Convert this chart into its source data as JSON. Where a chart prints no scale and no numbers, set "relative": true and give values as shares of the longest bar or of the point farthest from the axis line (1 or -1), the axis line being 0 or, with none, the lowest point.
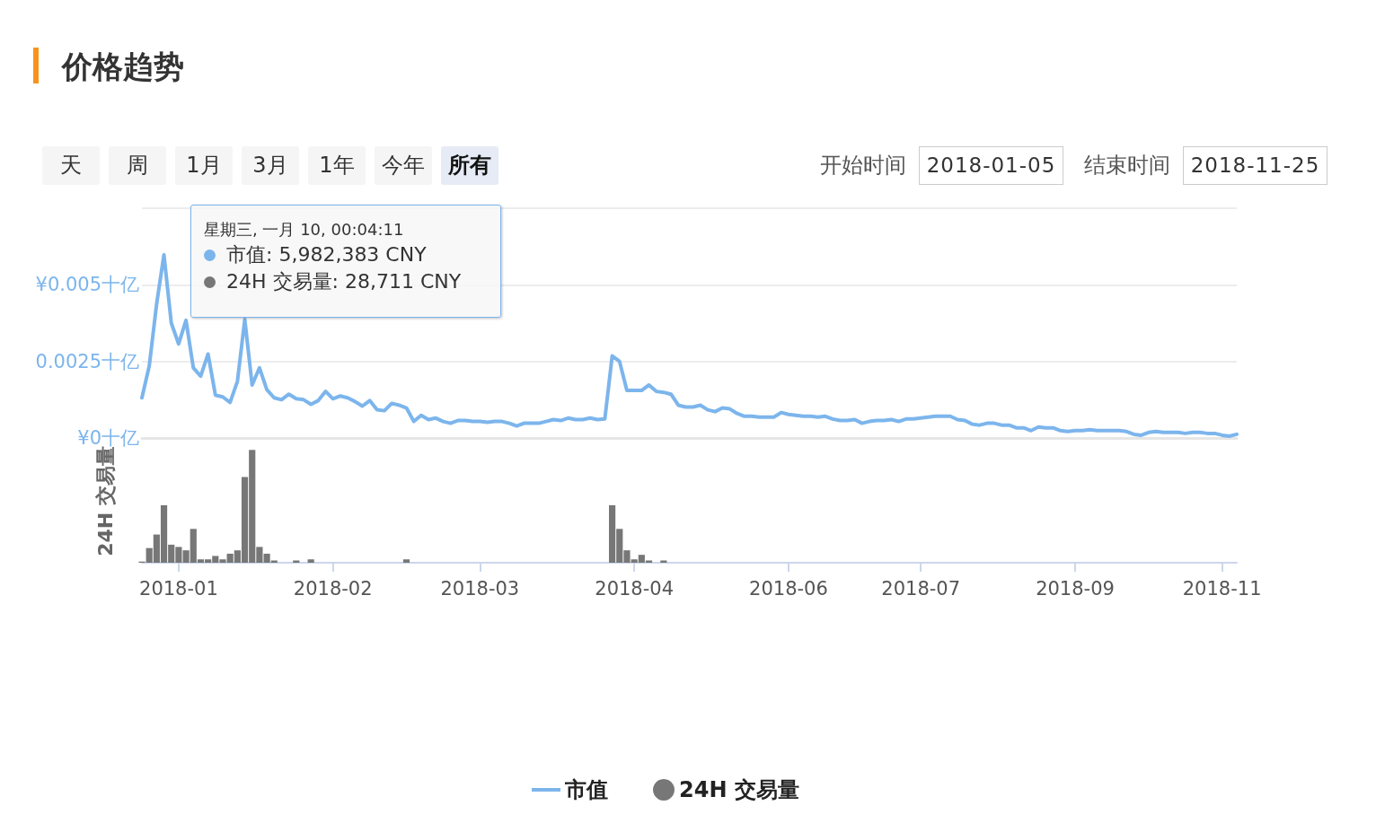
{
  "chart_data": [
    {
      "type": "line",
      "title": "价格趋势",
      "categories": [
        null,
        null,
        null,
        null,
        null,
        "2018-01",
        null,
        null,
        null,
        null,
        null,
        null,
        null,
        null,
        null,
        null,
        null,
        null,
        null,
        null,
        null,
        null,
        null,
        null,
        null,
        null,
        "2018-02",
        null,
        null,
        null,
        null,
        null,
        null,
        null,
        null,
        null,
        null,
        null,
        null,
        null,
        null,
        null,
        null,
        null,
        null,
        null,
        "2018-03",
        null,
        null,
        null,
        null,
        null,
        null,
        null,
        null,
        null,
        null,
        null,
        null,
        null,
        null,
        null,
        null,
        null,
        null,
        null,
        null,
        "2018-04",
        null,
        null,
        null,
        null,
        null,
        null,
        null,
        null,
        null,
        null,
        null,
        null,
        null,
        null,
        null,
        null,
        null,
        null,
        null,
        null,
        "2018-06",
        null,
        null,
        null,
        null,
        null,
        null,
        null,
        null,
        null,
        null,
        null,
        null,
        null,
        null,
        null,
        null,
        null,
        "2018-07",
        null,
        null,
        null,
        null,
        null,
        null,
        null,
        null,
        null,
        null,
        null,
        null,
        null,
        null,
        null,
        null,
        null,
        null,
        null,
        null,
        "2018-09",
        null,
        null,
        null,
        null,
        null,
        null,
        null,
        null,
        null,
        null,
        null,
        null,
        null,
        null,
        null,
        null,
        null,
        null,
        null,
        "2018-11",
        null,
        null
      ],
      "series": [
        {
          "name": "市值",
          "color": "#7cb5ec",
          "values": [
            0.00131,
            0.00235,
            0.00437,
            0.00598,
            0.00375,
            0.00307,
            0.00384,
            0.00229,
            0.00202,
            0.00274,
            0.0014,
            0.00134,
            0.00116,
            0.00185,
            0.00387,
            0.00173,
            0.00229,
            0.00158,
            0.00131,
            0.00125,
            0.00143,
            0.00128,
            0.00125,
            0.0011,
            0.00122,
            0.00152,
            0.00128,
            0.00137,
            0.00131,
            0.00119,
            0.00104,
            0.00122,
            0.00092,
            0.00089,
            0.00113,
            0.00107,
            0.00098,
            0.00054,
            0.00074,
            0.0006,
            0.00065,
            0.00054,
            0.00048,
            0.00057,
            0.00057,
            0.00054,
            0.00054,
            0.00051,
            0.00054,
            0.00054,
            0.00048,
            0.00039,
            0.00048,
            0.00048,
            0.00048,
            0.00054,
            0.0006,
            0.00057,
            0.00065,
            0.0006,
            0.0006,
            0.00065,
            0.0006,
            0.00062,
            0.00268,
            0.0025,
            0.00155,
            0.00155,
            0.00155,
            0.00173,
            0.00152,
            0.00149,
            0.00143,
            0.00107,
            0.00101,
            0.00101,
            0.00107,
            0.00092,
            0.00086,
            0.00098,
            0.00095,
            0.0008,
            0.00071,
            0.00071,
            0.00068,
            0.00068,
            0.00068,
            0.00083,
            0.00077,
            0.00074,
            0.00071,
            0.00071,
            0.00068,
            0.00071,
            0.00062,
            0.00057,
            0.00057,
            0.0006,
            0.00048,
            0.00054,
            0.00057,
            0.00057,
            0.0006,
            0.00054,
            0.00062,
            0.00062,
            0.00065,
            0.00068,
            0.00071,
            0.00071,
            0.00071,
            0.0006,
            0.00057,
            0.00045,
            0.00042,
            0.00048,
            0.00048,
            0.00042,
            0.00042,
            0.00033,
            0.00033,
            0.00024,
            0.00036,
            0.00033,
            0.00033,
            0.00024,
            0.00021,
            0.00024,
            0.00024,
            0.00027,
            0.00024,
            0.00024,
            0.00024,
            0.00024,
            0.00021,
            0.00012,
            9e-05,
            0.00018,
            0.00021,
            0.00018,
            0.00018,
            0.00018,
            0.00015,
            0.00018,
            0.00018,
            0.00015,
            0.00015,
            9e-05,
            6e-05,
            0.00012
          ]
        }
      ],
      "ylim": [
        0,
        0.0075
      ],
      "yticks": [
        {
          "value": 0,
          "label": "¥0十亿"
        },
        {
          "value": 0.0025,
          "label": "0.0025十亿"
        },
        {
          "value": 0.005,
          "label": "¥0.005十亿"
        },
        {
          "value": 0.0075,
          "label": null
        }
      ],
      "grid": "y",
      "legend": "bottom",
      "marker": "none",
      "tick_labels": "y",
      "annotations": [
        "天",
        "周",
        "1月",
        "3月",
        "1年",
        "今年",
        "所有",
        "开始时间",
        "2018-01-05",
        "结束时间",
        "2018-11-25",
        "星期三, 一月 10, 00:04:11",
        "市值: 5,982,383 CNY",
        "24H 交易量: 28,711 CNY"
      ]
    },
    {
      "type": "bar",
      "ylabel": "24H 交易量",
      "categories": [
        null,
        null,
        null,
        null,
        null,
        "2018-01",
        null,
        null,
        null,
        null,
        null,
        null,
        null,
        null,
        null,
        null,
        null,
        null,
        null,
        null,
        null,
        null,
        null,
        null,
        null,
        null,
        "2018-02",
        null,
        null,
        null,
        null,
        null,
        null,
        null,
        null,
        null,
        null,
        null,
        null,
        null,
        null,
        null,
        null,
        null,
        null,
        null,
        "2018-03",
        null,
        null,
        null,
        null,
        null,
        null,
        null,
        null,
        null,
        null,
        null,
        null,
        null,
        null,
        null,
        null,
        null,
        null,
        null,
        null,
        "2018-04",
        null,
        null,
        null,
        null,
        null,
        null,
        null,
        null,
        null,
        null,
        null,
        null,
        null,
        null,
        null,
        null,
        null,
        null,
        null,
        null,
        "2018-06",
        null,
        null,
        null,
        null,
        null,
        null,
        null,
        null,
        null,
        null,
        null,
        null,
        null,
        null,
        null,
        null,
        null,
        "2018-07",
        null,
        null,
        null,
        null,
        null,
        null,
        null,
        null,
        null,
        null,
        null,
        null,
        null,
        null,
        null,
        null,
        null,
        null,
        null,
        null,
        "2018-09",
        null,
        null,
        null,
        null,
        null,
        null,
        null,
        null,
        null,
        null,
        null,
        null,
        null,
        null,
        null,
        null,
        null,
        null,
        null,
        "2018-11",
        null,
        null
      ],
      "series": [
        {
          "name": "24H 交易量",
          "color": "#777777",
          "values": [
            0.01,
            0.13,
            0.25,
            0.51,
            0.16,
            0.14,
            0.11,
            0.3,
            0.03,
            0.03,
            0.06,
            0.03,
            0.08,
            0.11,
            0.76,
            1,
            0.14,
            0.08,
            0.02,
            null,
            null,
            0.02,
            null,
            0.03,
            null,
            null,
            null,
            null,
            null,
            null,
            null,
            null,
            null,
            null,
            null,
            null,
            0.03,
            null,
            null,
            null,
            null,
            null,
            null,
            null,
            null,
            null,
            null,
            null,
            null,
            null,
            null,
            null,
            null,
            null,
            null,
            null,
            null,
            null,
            null,
            null,
            null,
            null,
            null,
            null,
            0.51,
            0.3,
            0.11,
            0.03,
            0.07,
            0.02,
            null,
            0.02,
            null,
            null,
            null,
            null,
            null,
            null,
            null,
            null,
            null,
            null,
            null,
            null,
            null,
            null,
            null,
            null,
            null,
            null,
            null,
            null,
            null,
            null,
            null,
            null,
            null,
            null,
            null,
            null,
            null,
            null,
            null,
            null,
            null,
            null,
            null,
            null,
            null,
            null,
            null,
            null,
            null,
            null,
            null,
            null,
            null,
            null,
            null,
            null,
            null,
            null,
            null,
            null,
            null,
            null,
            null,
            null,
            null,
            null,
            null,
            null,
            null,
            null,
            null,
            null,
            null,
            null,
            null,
            null,
            null,
            null,
            null,
            null,
            null,
            null,
            null,
            null,
            null,
            null
          ]
        }
      ],
      "relative": true,
      "legend": "bottom"
    }
  ]
}
